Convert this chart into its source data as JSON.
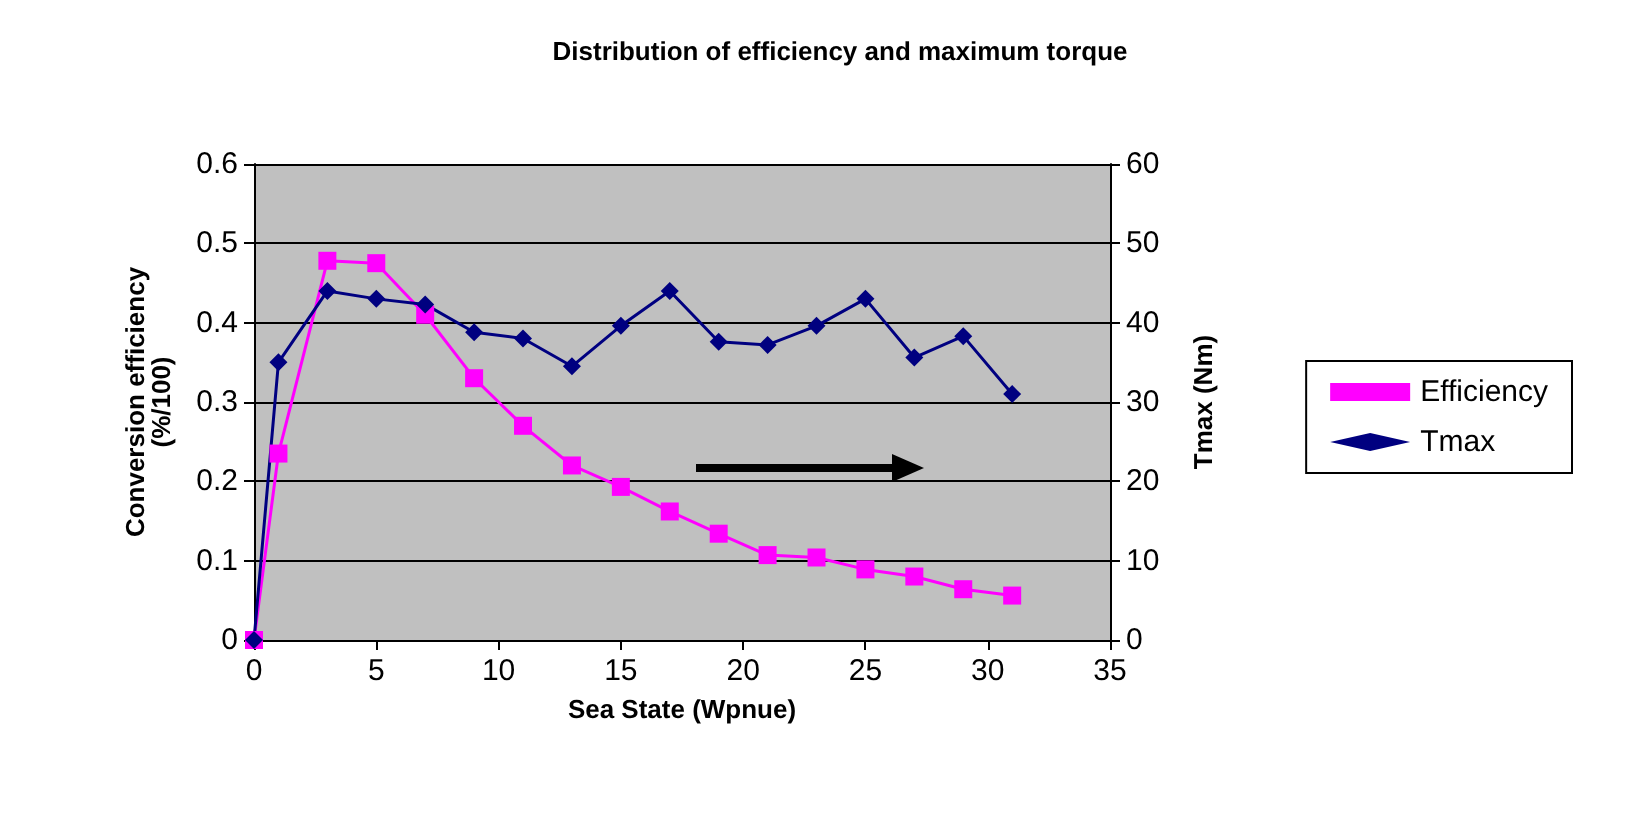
{
  "chart_data": {
    "type": "line",
    "title": "Distribution of efficiency and maximum torque",
    "xlabel": "Sea State (Wpnue)",
    "ylabel": "Conversion efficiency\n(%/100)",
    "y2label": "Tmax (Nm)",
    "x": [
      0,
      1,
      3,
      5,
      7,
      9,
      11,
      13,
      15,
      17,
      19,
      21,
      23,
      25,
      27,
      29,
      31
    ],
    "series": [
      {
        "name": "Efficiency",
        "color": "#ff00ff",
        "marker": "square",
        "values": [
          0,
          0.235,
          0.478,
          0.475,
          0.41,
          0.33,
          0.27,
          0.22,
          0.193,
          0.162,
          0.134,
          0.107,
          0.104,
          0.089,
          0.08,
          0.064,
          0.056
        ]
      },
      {
        "name": "Tmax",
        "color": "#000080",
        "marker": "diamond",
        "axis": "y2",
        "values": [
          0,
          35,
          44,
          43,
          42.3,
          38.8,
          38,
          34.5,
          39.6,
          44,
          37.6,
          37.2,
          39.6,
          43,
          35.6,
          38.3,
          31
        ]
      }
    ],
    "xlim": [
      0,
      35
    ],
    "xticks": [
      0,
      5,
      10,
      15,
      20,
      25,
      30,
      35
    ],
    "ylim": [
      0,
      0.6
    ],
    "yticks": [
      0,
      0.1,
      0.2,
      0.3,
      0.4,
      0.5,
      0.6
    ],
    "y2lim": [
      0,
      60
    ],
    "y2ticks": [
      0,
      10,
      20,
      30,
      40,
      50,
      60
    ],
    "grid": "y",
    "legend": "right"
  }
}
